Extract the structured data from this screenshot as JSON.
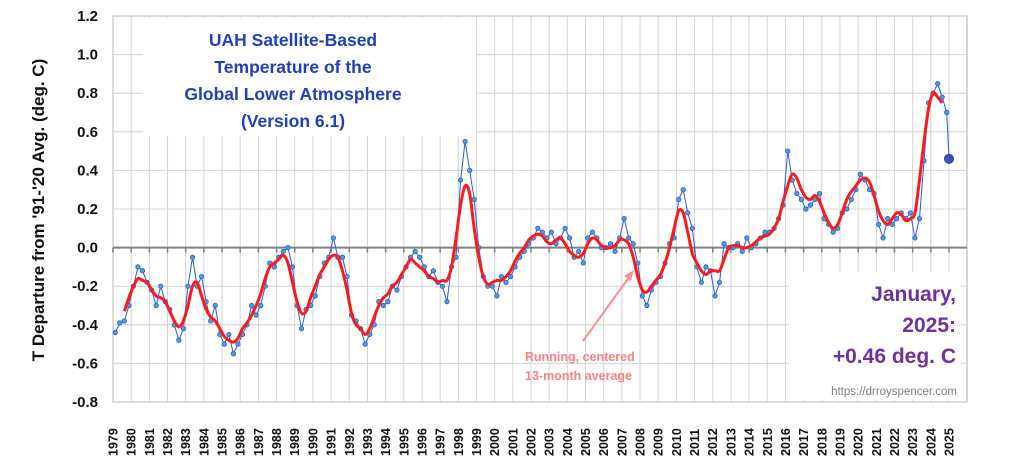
{
  "chart_data": {
    "type": "line",
    "title_lines": [
      "UAH Satellite-Based",
      "Temperature of the",
      "Global Lower Atmosphere",
      "(Version 6.1)"
    ],
    "ylabel": "T Departure from '91-'20 Avg. (deg. C)",
    "xlabel": "",
    "ylim": [
      -0.8,
      1.2
    ],
    "yticks": [
      "1.2",
      "1.0",
      "0.8",
      "0.6",
      "0.4",
      "0.2",
      "0.0",
      "-0.2",
      "-0.4",
      "-0.6",
      "-0.8"
    ],
    "xlim": [
      1979,
      2025
    ],
    "xticks": [
      "1979",
      "1980",
      "1981",
      "1982",
      "1983",
      "1984",
      "1985",
      "1986",
      "1987",
      "1988",
      "1989",
      "1990",
      "1991",
      "1992",
      "1993",
      "1994",
      "1995",
      "1996",
      "1997",
      "1998",
      "1999",
      "2000",
      "2001",
      "2002",
      "2003",
      "2004",
      "2005",
      "2006",
      "2007",
      "2008",
      "2009",
      "2010",
      "2011",
      "2012",
      "2013",
      "2014",
      "2015",
      "2016",
      "2017",
      "2018",
      "2019",
      "2020",
      "2021",
      "2022",
      "2023",
      "2024",
      "2025"
    ],
    "grid": true,
    "colors": {
      "monthly": "#2e5bd6",
      "monthly_marker": "#4a9fd8",
      "running": "#ff1a1a",
      "title": "#1f3fbf",
      "latest": "#7030a0",
      "annotation": "#ff8080",
      "url": "#808080"
    },
    "monthly_series_quarterly": [
      {
        "year": 1979,
        "q": [
          -0.44,
          -0.39,
          -0.38,
          -0.3
        ]
      },
      {
        "year": 1980,
        "q": [
          -0.2,
          -0.1,
          -0.12,
          -0.18
        ]
      },
      {
        "year": 1981,
        "q": [
          -0.22,
          -0.3,
          -0.2,
          -0.28
        ]
      },
      {
        "year": 1982,
        "q": [
          -0.32,
          -0.4,
          -0.48,
          -0.42
        ]
      },
      {
        "year": 1983,
        "q": [
          -0.2,
          -0.05,
          -0.2,
          -0.15
        ]
      },
      {
        "year": 1984,
        "q": [
          -0.28,
          -0.38,
          -0.3,
          -0.45
        ]
      },
      {
        "year": 1985,
        "q": [
          -0.5,
          -0.45,
          -0.55,
          -0.5
        ]
      },
      {
        "year": 1986,
        "q": [
          -0.45,
          -0.4,
          -0.3,
          -0.35
        ]
      },
      {
        "year": 1987,
        "q": [
          -0.3,
          -0.2,
          -0.08,
          -0.1
        ]
      },
      {
        "year": 1988,
        "q": [
          -0.05,
          -0.02,
          0.0,
          -0.1
        ]
      },
      {
        "year": 1989,
        "q": [
          -0.3,
          -0.42,
          -0.32,
          -0.3
        ]
      },
      {
        "year": 1990,
        "q": [
          -0.25,
          -0.15,
          -0.08,
          -0.05
        ]
      },
      {
        "year": 1991,
        "q": [
          0.05,
          -0.05,
          -0.05,
          -0.15
        ]
      },
      {
        "year": 1992,
        "q": [
          -0.35,
          -0.38,
          -0.42,
          -0.5
        ]
      },
      {
        "year": 1993,
        "q": [
          -0.45,
          -0.4,
          -0.28,
          -0.3
        ]
      },
      {
        "year": 1994,
        "q": [
          -0.28,
          -0.2,
          -0.22,
          -0.15
        ]
      },
      {
        "year": 1995,
        "q": [
          -0.1,
          -0.05,
          -0.02,
          -0.05
        ]
      },
      {
        "year": 1996,
        "q": [
          -0.1,
          -0.15,
          -0.12,
          -0.18
        ]
      },
      {
        "year": 1997,
        "q": [
          -0.2,
          -0.28,
          -0.1,
          -0.05
        ]
      },
      {
        "year": 1998,
        "q": [
          0.35,
          0.55,
          0.4,
          0.25
        ]
      },
      {
        "year": 1999,
        "q": [
          0.0,
          -0.15,
          -0.2,
          -0.2
        ]
      },
      {
        "year": 2000,
        "q": [
          -0.25,
          -0.15,
          -0.18,
          -0.15
        ]
      },
      {
        "year": 2001,
        "q": [
          -0.1,
          -0.05,
          -0.02,
          0.02
        ]
      },
      {
        "year": 2002,
        "q": [
          0.05,
          0.1,
          0.08,
          0.05
        ]
      },
      {
        "year": 2003,
        "q": [
          0.08,
          0.02,
          0.05,
          0.1
        ]
      },
      {
        "year": 2004,
        "q": [
          0.05,
          -0.05,
          -0.02,
          -0.08
        ]
      },
      {
        "year": 2005,
        "q": [
          0.05,
          0.08,
          0.05,
          0.0
        ]
      },
      {
        "year": 2006,
        "q": [
          0.0,
          0.02,
          -0.02,
          0.05
        ]
      },
      {
        "year": 2007,
        "q": [
          0.15,
          0.05,
          0.02,
          -0.08
        ]
      },
      {
        "year": 2008,
        "q": [
          -0.25,
          -0.3,
          -0.22,
          -0.18
        ]
      },
      {
        "year": 2009,
        "q": [
          -0.15,
          -0.08,
          0.02,
          0.05
        ]
      },
      {
        "year": 2010,
        "q": [
          0.25,
          0.3,
          0.18,
          0.1
        ]
      },
      {
        "year": 2011,
        "q": [
          -0.1,
          -0.18,
          -0.1,
          -0.12
        ]
      },
      {
        "year": 2012,
        "q": [
          -0.25,
          -0.18,
          0.02,
          0.0
        ]
      },
      {
        "year": 2013,
        "q": [
          0.0,
          0.02,
          -0.02,
          0.05
        ]
      },
      {
        "year": 2014,
        "q": [
          0.0,
          0.02,
          0.05,
          0.08
        ]
      },
      {
        "year": 2015,
        "q": [
          0.08,
          0.1,
          0.15,
          0.22
        ]
      },
      {
        "year": 2016,
        "q": [
          0.5,
          0.35,
          0.28,
          0.25
        ]
      },
      {
        "year": 2017,
        "q": [
          0.2,
          0.22,
          0.25,
          0.28
        ]
      },
      {
        "year": 2018,
        "q": [
          0.15,
          0.12,
          0.08,
          0.1
        ]
      },
      {
        "year": 2019,
        "q": [
          0.18,
          0.2,
          0.25,
          0.3
        ]
      },
      {
        "year": 2020,
        "q": [
          0.38,
          0.35,
          0.3,
          0.28
        ]
      },
      {
        "year": 2021,
        "q": [
          0.12,
          0.05,
          0.15,
          0.12
        ]
      },
      {
        "year": 2022,
        "q": [
          0.15,
          0.18,
          0.15,
          0.18
        ]
      },
      {
        "year": 2023,
        "q": [
          0.05,
          0.15,
          0.45,
          0.75
        ]
      },
      {
        "year": 2024,
        "q": [
          0.8,
          0.85,
          0.78,
          0.7
        ]
      }
    ],
    "running_average_quarterly": [
      {
        "year": 1979,
        "q": [
          null,
          null,
          -0.33,
          -0.26
        ]
      },
      {
        "year": 1980,
        "q": [
          -0.2,
          -0.16,
          -0.17,
          -0.18
        ]
      },
      {
        "year": 1981,
        "q": [
          -0.22,
          -0.25,
          -0.26,
          -0.28
        ]
      },
      {
        "year": 1982,
        "q": [
          -0.33,
          -0.38,
          -0.41,
          -0.38
        ]
      },
      {
        "year": 1983,
        "q": [
          -0.3,
          -0.2,
          -0.18,
          -0.25
        ]
      },
      {
        "year": 1984,
        "q": [
          -0.32,
          -0.36,
          -0.38,
          -0.42
        ]
      },
      {
        "year": 1985,
        "q": [
          -0.46,
          -0.48,
          -0.49,
          -0.47
        ]
      },
      {
        "year": 1986,
        "q": [
          -0.42,
          -0.39,
          -0.35,
          -0.3
        ]
      },
      {
        "year": 1987,
        "q": [
          -0.24,
          -0.16,
          -0.1,
          -0.08
        ]
      },
      {
        "year": 1988,
        "q": [
          -0.06,
          -0.04,
          -0.08,
          -0.18
        ]
      },
      {
        "year": 1989,
        "q": [
          -0.28,
          -0.34,
          -0.33,
          -0.26
        ]
      },
      {
        "year": 1990,
        "q": [
          -0.2,
          -0.14,
          -0.1,
          -0.06
        ]
      },
      {
        "year": 1991,
        "q": [
          -0.04,
          -0.05,
          -0.12,
          -0.22
        ]
      },
      {
        "year": 1992,
        "q": [
          -0.34,
          -0.4,
          -0.42,
          -0.45
        ]
      },
      {
        "year": 1993,
        "q": [
          -0.42,
          -0.36,
          -0.3,
          -0.26
        ]
      },
      {
        "year": 1994,
        "q": [
          -0.24,
          -0.2,
          -0.18,
          -0.14
        ]
      },
      {
        "year": 1995,
        "q": [
          -0.1,
          -0.06,
          -0.08,
          -0.1
        ]
      },
      {
        "year": 1996,
        "q": [
          -0.12,
          -0.15,
          -0.16,
          -0.18
        ]
      },
      {
        "year": 1997,
        "q": [
          -0.17,
          -0.17,
          -0.1,
          0.05
        ]
      },
      {
        "year": 1998,
        "q": [
          0.22,
          0.32,
          0.28,
          0.1
        ]
      },
      {
        "year": 1999,
        "q": [
          -0.05,
          -0.15,
          -0.19,
          -0.18
        ]
      },
      {
        "year": 2000,
        "q": [
          -0.17,
          -0.17,
          -0.15,
          -0.12
        ]
      },
      {
        "year": 2001,
        "q": [
          -0.07,
          -0.03,
          0.0,
          0.04
        ]
      },
      {
        "year": 2002,
        "q": [
          0.06,
          0.07,
          0.06,
          0.03
        ]
      },
      {
        "year": 2003,
        "q": [
          0.02,
          0.04,
          0.05,
          0.02
        ]
      },
      {
        "year": 2004,
        "q": [
          -0.02,
          -0.04,
          -0.05,
          -0.03
        ]
      },
      {
        "year": 2005,
        "q": [
          0.02,
          0.05,
          0.04,
          0.01
        ]
      },
      {
        "year": 2006,
        "q": [
          0.0,
          0.0,
          0.01,
          0.04
        ]
      },
      {
        "year": 2007,
        "q": [
          0.04,
          0.02,
          -0.05,
          -0.15
        ]
      },
      {
        "year": 2008,
        "q": [
          -0.22,
          -0.23,
          -0.2,
          -0.17
        ]
      },
      {
        "year": 2009,
        "q": [
          -0.14,
          -0.08,
          0.0,
          0.1
        ]
      },
      {
        "year": 2010,
        "q": [
          0.19,
          0.18,
          0.08,
          -0.03
        ]
      },
      {
        "year": 2011,
        "q": [
          -0.08,
          -0.12,
          -0.14,
          -0.12
        ]
      },
      {
        "year": 2012,
        "q": [
          -0.12,
          -0.12,
          -0.06,
          0.0
        ]
      },
      {
        "year": 2013,
        "q": [
          0.01,
          0.01,
          0.0,
          0.0
        ]
      },
      {
        "year": 2014,
        "q": [
          0.01,
          0.03,
          0.05,
          0.06
        ]
      },
      {
        "year": 2015,
        "q": [
          0.07,
          0.1,
          0.15,
          0.24
        ]
      },
      {
        "year": 2016,
        "q": [
          0.32,
          0.38,
          0.36,
          0.3
        ]
      },
      {
        "year": 2017,
        "q": [
          0.26,
          0.25,
          0.27,
          0.24
        ]
      },
      {
        "year": 2018,
        "q": [
          0.18,
          0.13,
          0.1,
          0.12
        ]
      },
      {
        "year": 2019,
        "q": [
          0.18,
          0.25,
          0.29,
          0.32
        ]
      },
      {
        "year": 2020,
        "q": [
          0.35,
          0.36,
          0.34,
          0.27
        ]
      },
      {
        "year": 2021,
        "q": [
          0.19,
          0.14,
          0.12,
          0.15
        ]
      },
      {
        "year": 2022,
        "q": [
          0.18,
          0.17,
          0.14,
          0.15
        ]
      },
      {
        "year": 2023,
        "q": [
          0.18,
          0.35,
          0.55,
          0.72
        ]
      },
      {
        "year": 2024,
        "q": [
          0.8,
          0.78,
          0.75,
          null
        ]
      }
    ],
    "latest_point": {
      "date": "2025-01",
      "value": 0.46
    },
    "latest_label_lines": [
      "January,",
      "2025:",
      "+0.46 deg. C"
    ],
    "running_label_lines": [
      "Running, centered",
      "13-month average"
    ],
    "source_url": "https://drroyspencer.com"
  }
}
